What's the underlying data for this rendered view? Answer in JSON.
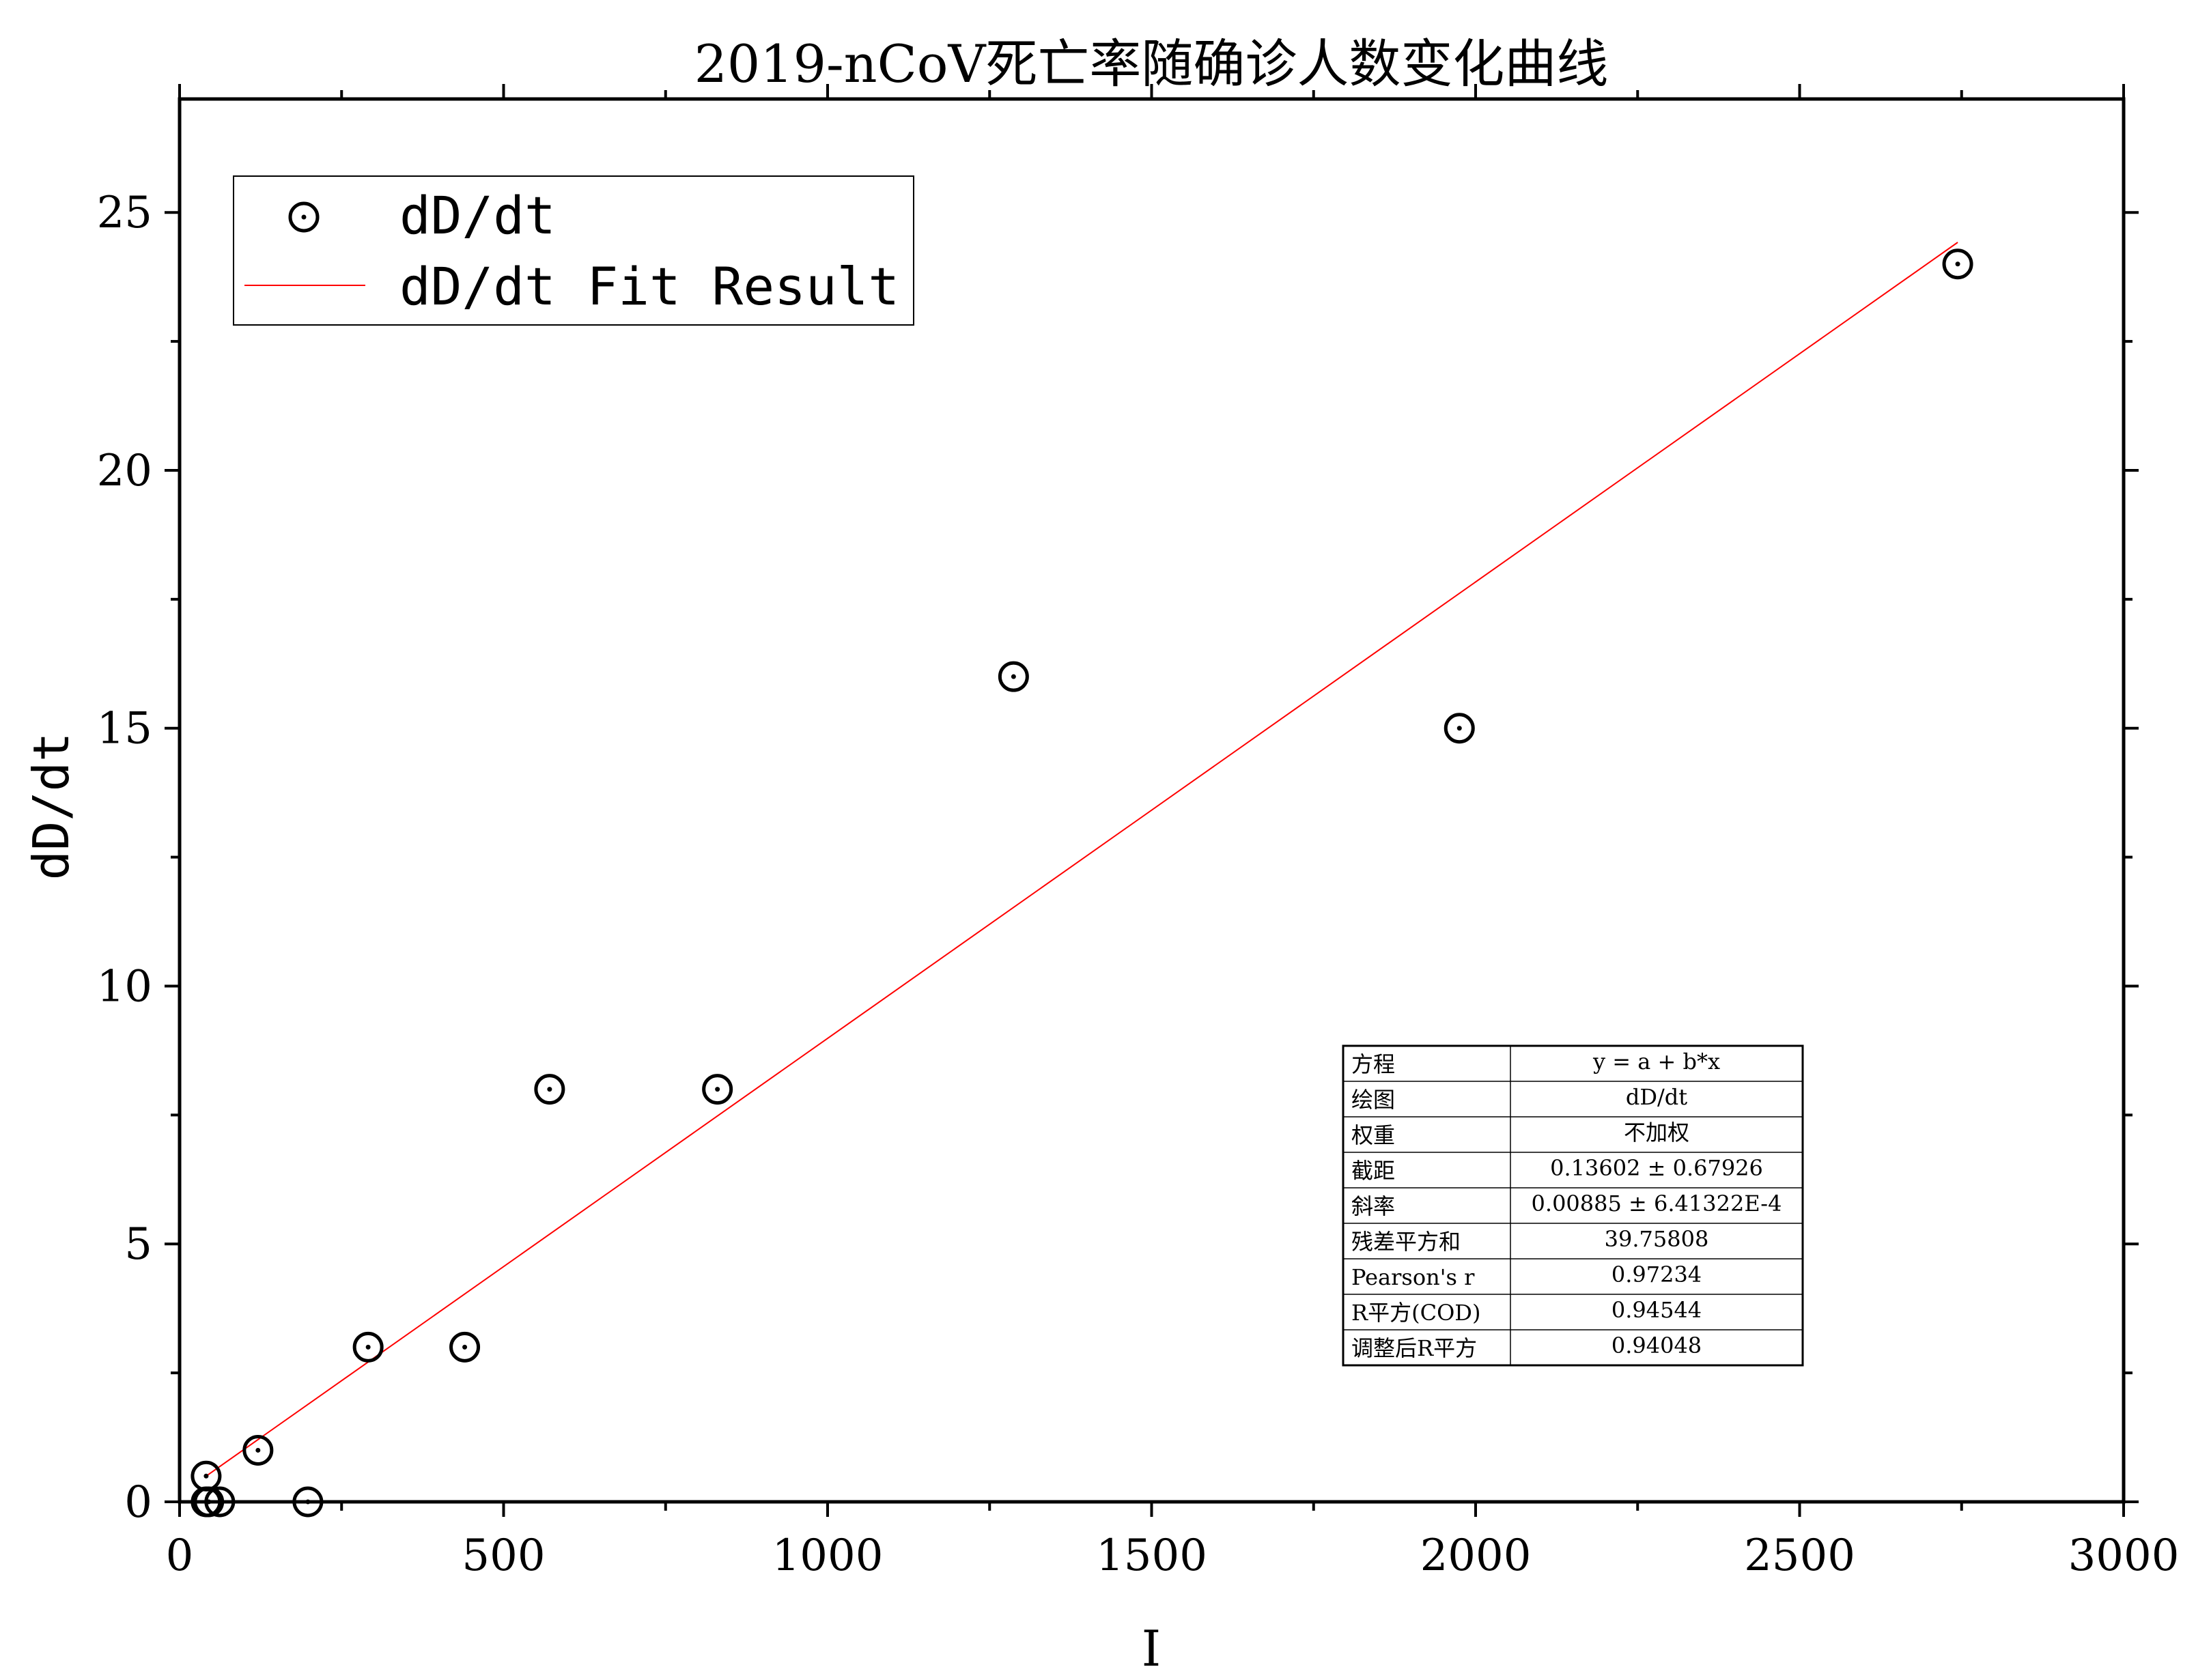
{
  "chart_data": {
    "type": "scatter",
    "title": "2019-nCoV死亡率随确诊人数变化曲线",
    "xlabel": "I",
    "ylabel": "dD/dt",
    "xlim": [
      0,
      3000
    ],
    "ylim": [
      0,
      27.2
    ],
    "x_ticks": [
      0,
      500,
      1000,
      1500,
      2000,
      2500,
      3000
    ],
    "y_ticks": [
      0,
      5,
      10,
      15,
      20,
      25
    ],
    "grid": false,
    "legend_position": "top-left",
    "series": [
      {
        "name": "dD/dt",
        "marker": "circle-dot",
        "color": "#000000",
        "points": [
          {
            "x": 41,
            "y": 0.5
          },
          {
            "x": 41,
            "y": 0
          },
          {
            "x": 45,
            "y": 0
          },
          {
            "x": 62,
            "y": 0
          },
          {
            "x": 121,
            "y": 1
          },
          {
            "x": 198,
            "y": 0
          },
          {
            "x": 291,
            "y": 3
          },
          {
            "x": 440,
            "y": 3
          },
          {
            "x": 571,
            "y": 8
          },
          {
            "x": 830,
            "y": 8
          },
          {
            "x": 1287,
            "y": 16
          },
          {
            "x": 1975,
            "y": 15
          },
          {
            "x": 2744,
            "y": 24
          }
        ]
      },
      {
        "name": "dD/dt Fit Result",
        "type": "line",
        "color": "#ff0000",
        "intercept": 0.13602,
        "slope": 0.00885,
        "x_range": [
          41,
          2744
        ]
      }
    ],
    "stats_table": {
      "rows": [
        {
          "label": "方程",
          "value": "y = a + b*x"
        },
        {
          "label": "绘图",
          "value": "dD/dt"
        },
        {
          "label": "权重",
          "value": "不加权"
        },
        {
          "label": "截距",
          "value": "0.13602 ± 0.67926"
        },
        {
          "label": "斜率",
          "value": "0.00885 ± 6.41322E-4"
        },
        {
          "label": "残差平方和",
          "value": "39.75808"
        },
        {
          "label": "Pearson's r",
          "value": "0.97234"
        },
        {
          "label": "R平方(COD)",
          "value": "0.94544"
        },
        {
          "label": "调整后R平方",
          "value": "0.94048"
        }
      ]
    }
  }
}
